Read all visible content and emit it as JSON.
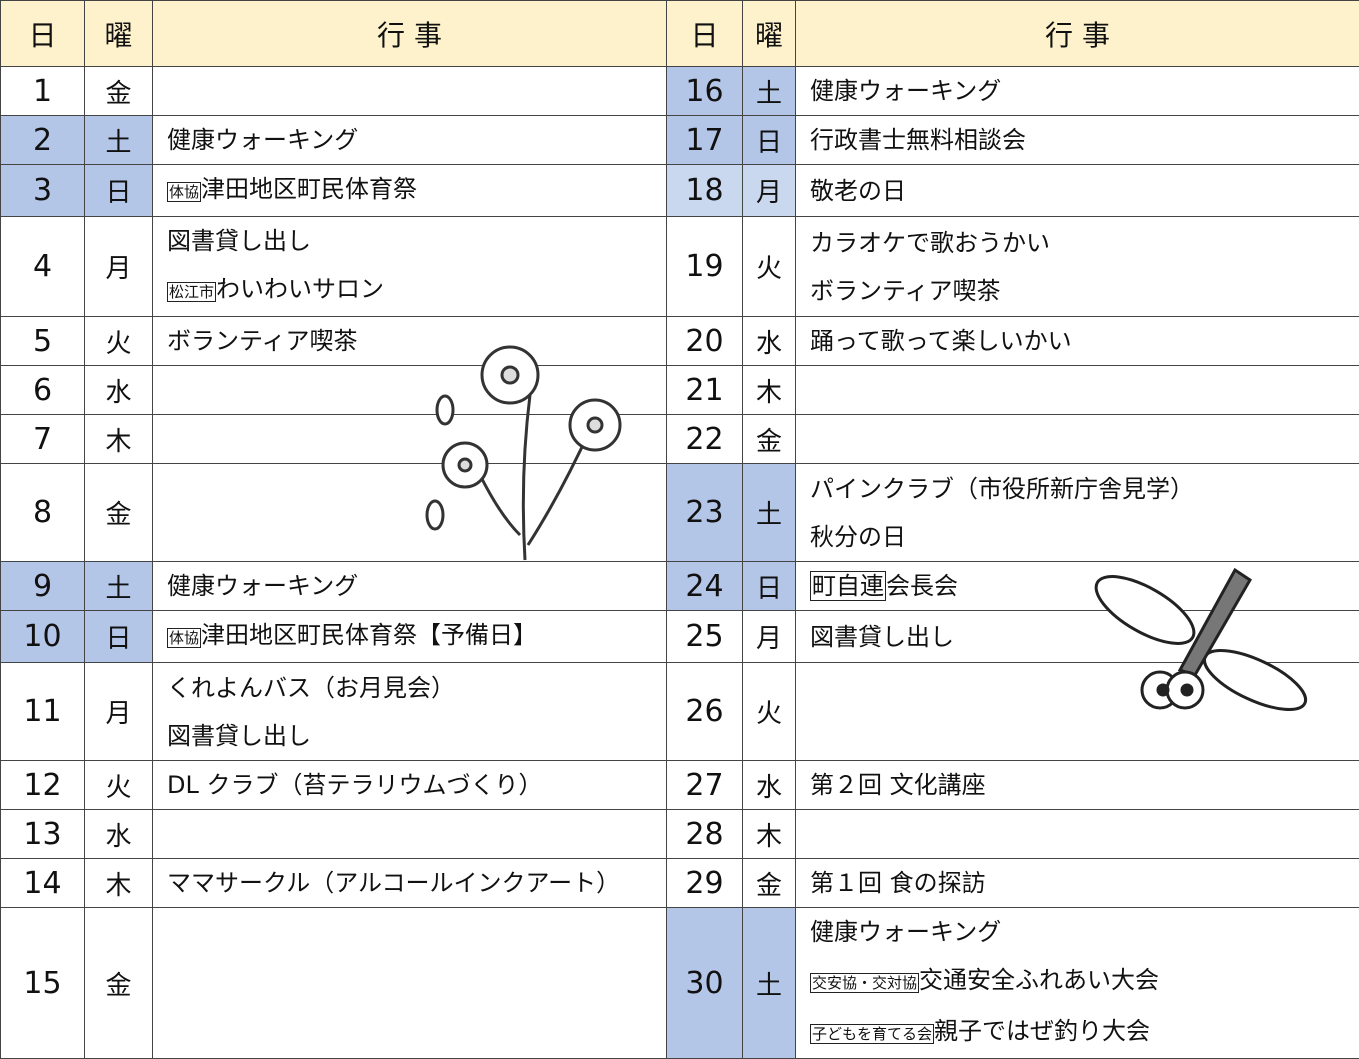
{
  "header": {
    "day": "日",
    "weekday": "曜",
    "events": "行 事"
  },
  "rows": [
    {
      "left": {
        "day": "1",
        "weekday": "金",
        "events": []
      },
      "right": {
        "day": "16",
        "weekday": "土",
        "shade": "#b4c6e7",
        "events": [
          "健康ウォーキング"
        ]
      }
    },
    {
      "left": {
        "day": "2",
        "weekday": "土",
        "shade": "#b4c6e7",
        "events": [
          "健康ウォーキング"
        ]
      },
      "right": {
        "day": "17",
        "weekday": "日",
        "shade": "#b4c6e7",
        "events": [
          "行政書士無料相談会"
        ]
      }
    },
    {
      "left": {
        "day": "3",
        "weekday": "日",
        "shade": "#b4c6e7",
        "events": [
          {
            "tag": "体協",
            "text": "津田地区町民体育祭"
          }
        ]
      },
      "right": {
        "day": "18",
        "weekday": "月",
        "shade": "#c9d8ef",
        "events": [
          "敬老の日"
        ]
      }
    },
    {
      "left": {
        "day": "4",
        "weekday": "月",
        "events": [
          "図書貸し出し",
          {
            "tag": "松江市",
            "text": "わいわいサロン"
          }
        ]
      },
      "right": {
        "day": "19",
        "weekday": "火",
        "events": [
          "カラオケで歌おうかい",
          "ボランティア喫茶"
        ]
      }
    },
    {
      "left": {
        "day": "5",
        "weekday": "火",
        "events": [
          "ボランティア喫茶"
        ]
      },
      "right": {
        "day": "20",
        "weekday": "水",
        "events": [
          "踊って歌って楽しいかい"
        ]
      }
    },
    {
      "left": {
        "day": "6",
        "weekday": "水",
        "events": []
      },
      "right": {
        "day": "21",
        "weekday": "木",
        "events": []
      }
    },
    {
      "left": {
        "day": "7",
        "weekday": "木",
        "events": []
      },
      "right": {
        "day": "22",
        "weekday": "金",
        "events": []
      }
    },
    {
      "left": {
        "day": "8",
        "weekday": "金",
        "events": []
      },
      "right": {
        "day": "23",
        "weekday": "土",
        "shade": "#b4c6e7",
        "events": [
          "パインクラブ（市役所新庁舎見学）",
          "秋分の日"
        ]
      }
    },
    {
      "left": {
        "day": "9",
        "weekday": "土",
        "shade": "#b4c6e7",
        "events": [
          "健康ウォーキング"
        ]
      },
      "right": {
        "day": "24",
        "weekday": "日",
        "shade": "#b4c6e7",
        "events": [
          {
            "tag": "町自連",
            "text": "会長会",
            "big": true
          }
        ]
      }
    },
    {
      "left": {
        "day": "10",
        "weekday": "日",
        "shade": "#b4c6e7",
        "events": [
          {
            "tag": "体協",
            "text": "津田地区町民体育祭【予備日】"
          }
        ]
      },
      "right": {
        "day": "25",
        "weekday": "月",
        "events": [
          "図書貸し出し"
        ]
      }
    },
    {
      "left": {
        "day": "11",
        "weekday": "月",
        "events": [
          "くれよんバス（お月見会）",
          "図書貸し出し"
        ]
      },
      "right": {
        "day": "26",
        "weekday": "火",
        "events": []
      }
    },
    {
      "left": {
        "day": "12",
        "weekday": "火",
        "events": [
          "DL クラブ（苔テラリウムづくり）"
        ]
      },
      "right": {
        "day": "27",
        "weekday": "水",
        "events": [
          "第２回 文化講座"
        ]
      }
    },
    {
      "left": {
        "day": "13",
        "weekday": "水",
        "events": []
      },
      "right": {
        "day": "28",
        "weekday": "木",
        "events": []
      }
    },
    {
      "left": {
        "day": "14",
        "weekday": "木",
        "events": [
          "ママサークル（アルコールインクアート）"
        ]
      },
      "right": {
        "day": "29",
        "weekday": "金",
        "events": [
          "第１回 食の探訪"
        ]
      }
    },
    {
      "left": {
        "day": "15",
        "weekday": "金",
        "events": []
      },
      "right": {
        "day": "30",
        "weekday": "土",
        "shade": "#b4c6e7",
        "events": [
          "健康ウォーキング",
          {
            "tag": "交安協・交対協",
            "text": "交通安全ふれあい大会"
          },
          {
            "tag": "子どもを育てる会",
            "text": "親子ではぜ釣り大会"
          }
        ]
      }
    }
  ]
}
